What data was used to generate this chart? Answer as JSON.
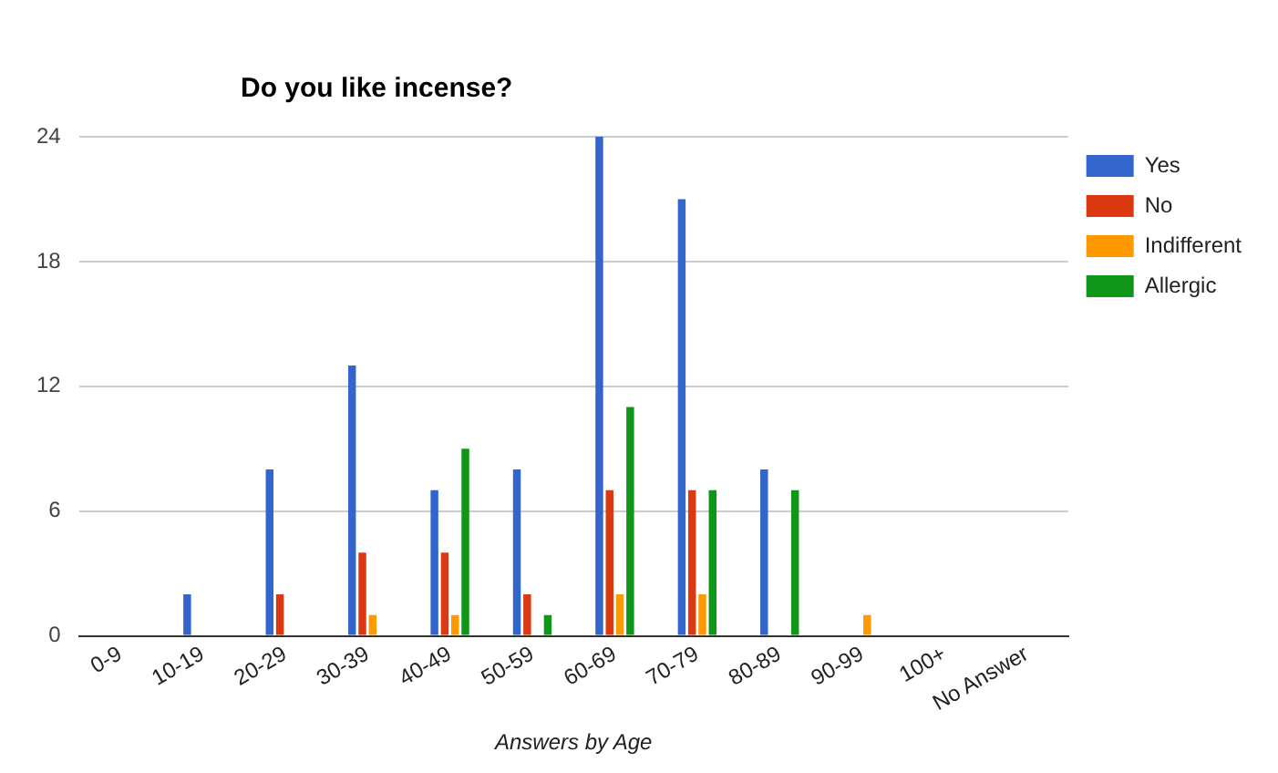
{
  "chart_data": {
    "type": "bar",
    "title": "Do you like incense?",
    "xlabel": "Answers by Age",
    "categories": [
      "0-9",
      "10-19",
      "20-29",
      "30-39",
      "40-49",
      "50-59",
      "60-69",
      "70-79",
      "80-89",
      "90-99",
      "100+",
      "No Answer"
    ],
    "series": [
      {
        "name": "Yes",
        "color": "#3366cc",
        "values": [
          0,
          2,
          8,
          13,
          7,
          8,
          24,
          21,
          8,
          0,
          0,
          0
        ]
      },
      {
        "name": "No",
        "color": "#dc3912",
        "values": [
          0,
          0,
          2,
          4,
          4,
          2,
          7,
          7,
          0,
          0,
          0,
          0
        ]
      },
      {
        "name": "Indifferent",
        "color": "#ff9900",
        "values": [
          0,
          0,
          0,
          1,
          1,
          0,
          2,
          2,
          0,
          1,
          0,
          0
        ]
      },
      {
        "name": "Allergic",
        "color": "#109618",
        "values": [
          0,
          0,
          0,
          0,
          9,
          1,
          11,
          7,
          7,
          0,
          0,
          0
        ]
      }
    ],
    "ylim": [
      0,
      24
    ],
    "yticks": [
      0,
      6,
      12,
      18,
      24
    ],
    "grid": "y",
    "legend": "right"
  }
}
